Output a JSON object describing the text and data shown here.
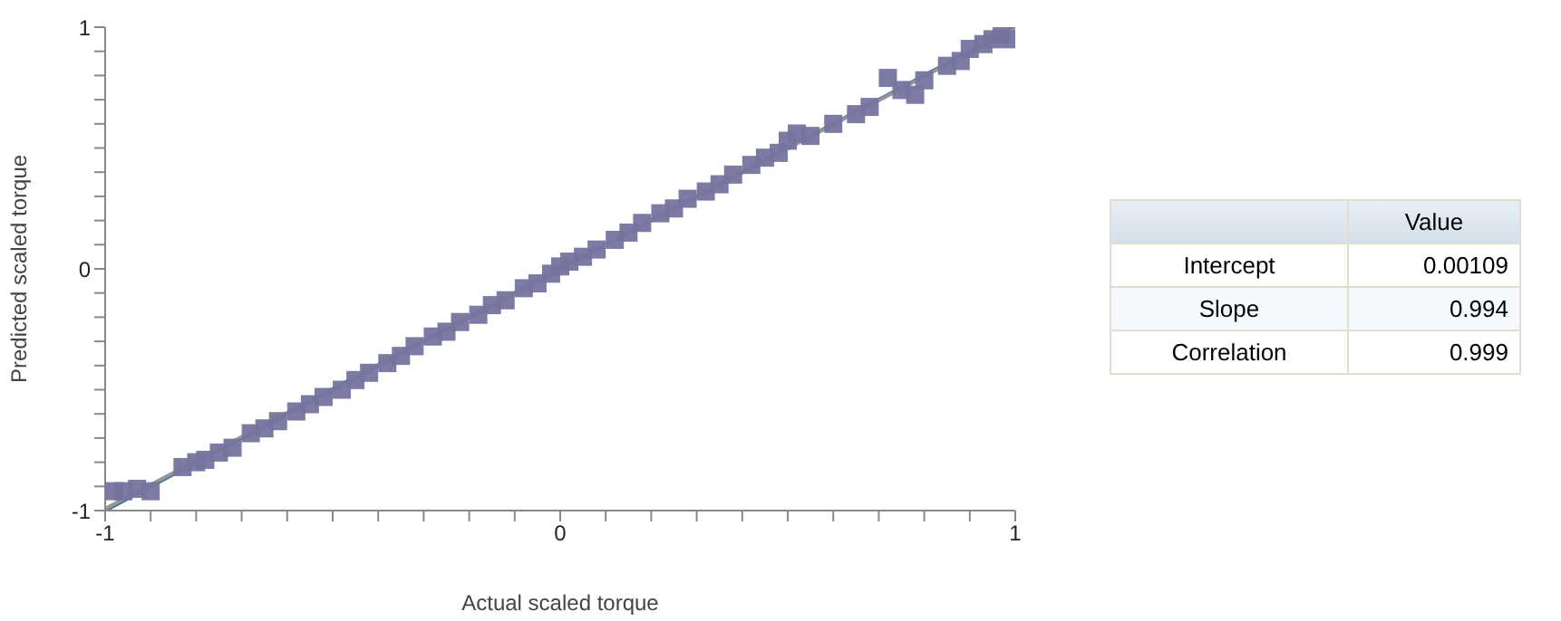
{
  "chart_data": {
    "type": "scatter",
    "xlabel": "Actual scaled torque",
    "ylabel": "Predicted scaled torque",
    "xlim": [
      -1,
      1
    ],
    "ylim": [
      -1,
      1
    ],
    "xticks": [
      -1,
      {
        "value": -0.9,
        "label": null
      },
      {
        "value": -0.8,
        "label": null
      },
      {
        "value": -0.7,
        "label": null
      },
      {
        "value": -0.6,
        "label": null
      },
      {
        "value": -0.5,
        "label": null
      },
      {
        "value": -0.4,
        "label": null
      },
      {
        "value": -0.3,
        "label": null
      },
      {
        "value": -0.2,
        "label": null
      },
      {
        "value": -0.1,
        "label": null
      },
      0,
      {
        "value": 0.1,
        "label": null
      },
      {
        "value": 0.2,
        "label": null
      },
      {
        "value": 0.3,
        "label": null
      },
      {
        "value": 0.4,
        "label": null
      },
      {
        "value": 0.5,
        "label": null
      },
      {
        "value": 0.6,
        "label": null
      },
      {
        "value": 0.7,
        "label": null
      },
      {
        "value": 0.8,
        "label": null
      },
      {
        "value": 0.9,
        "label": null
      },
      1
    ],
    "yticks": [
      -1,
      {
        "value": -0.9,
        "label": null
      },
      {
        "value": -0.8,
        "label": null
      },
      {
        "value": -0.7,
        "label": null
      },
      {
        "value": -0.6,
        "label": null
      },
      {
        "value": -0.5,
        "label": null
      },
      {
        "value": -0.4,
        "label": null
      },
      {
        "value": -0.3,
        "label": null
      },
      {
        "value": -0.2,
        "label": null
      },
      {
        "value": -0.1,
        "label": null
      },
      0,
      {
        "value": 0.1,
        "label": null
      },
      {
        "value": 0.2,
        "label": null
      },
      {
        "value": 0.3,
        "label": null
      },
      {
        "value": 0.4,
        "label": null
      },
      {
        "value": 0.5,
        "label": null
      },
      {
        "value": 0.6,
        "label": null
      },
      {
        "value": 0.7,
        "label": null
      },
      {
        "value": 0.8,
        "label": null
      },
      {
        "value": 0.9,
        "label": null
      },
      1
    ],
    "grid": false,
    "marker": "square",
    "series": [
      {
        "type": "line",
        "color": "#2e7385",
        "x": [
          -1,
          1
        ],
        "values": [
          -1,
          1
        ],
        "marker": "none"
      },
      {
        "type": "line",
        "color": "#959595",
        "x": [
          -1,
          1
        ],
        "values": [
          -0.993,
          0.995
        ],
        "marker": "none"
      },
      {
        "color": "#74749f",
        "x": [
          -0.98,
          -0.96,
          -0.93,
          -0.9,
          -0.83,
          -0.8,
          -0.78,
          -0.75,
          -0.72,
          -0.68,
          -0.65,
          -0.62,
          -0.58,
          -0.55,
          -0.52,
          -0.48,
          -0.45,
          -0.42,
          -0.38,
          -0.35,
          -0.32,
          -0.28,
          -0.25,
          -0.22,
          -0.18,
          -0.15,
          -0.12,
          -0.08,
          -0.05,
          -0.02,
          0,
          0.02,
          0.05,
          0.08,
          0.12,
          0.15,
          0.18,
          0.22,
          0.25,
          0.28,
          0.32,
          0.35,
          0.38,
          0.42,
          0.45,
          0.48,
          0.5,
          0.52,
          0.55,
          0.6,
          0.65,
          0.68,
          0.72,
          0.75,
          0.78,
          0.8,
          0.85,
          0.88,
          0.9,
          0.93,
          0.95,
          0.97,
          0.99
        ],
        "values": [
          -0.92,
          -0.92,
          -0.91,
          -0.92,
          -0.82,
          -0.8,
          -0.79,
          -0.76,
          -0.74,
          -0.68,
          -0.66,
          -0.63,
          -0.59,
          -0.56,
          -0.53,
          -0.5,
          -0.46,
          -0.43,
          -0.39,
          -0.36,
          -0.32,
          -0.28,
          -0.26,
          -0.22,
          -0.19,
          -0.15,
          -0.13,
          -0.08,
          -0.06,
          -0.02,
          0.01,
          0.03,
          0.05,
          0.08,
          0.12,
          0.15,
          0.19,
          0.23,
          0.25,
          0.29,
          0.32,
          0.35,
          0.39,
          0.43,
          0.46,
          0.48,
          0.53,
          0.56,
          0.55,
          0.6,
          0.64,
          0.67,
          0.79,
          0.74,
          0.72,
          0.78,
          0.84,
          0.86,
          0.91,
          0.93,
          0.95,
          0.97,
          0.95
        ]
      }
    ],
    "annotations": [
      "Value",
      "Intercept",
      "0.00109",
      "Slope",
      "0.994",
      "Correlation",
      "0.999"
    ]
  }
}
